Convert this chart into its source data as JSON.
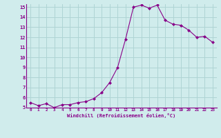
{
  "x": [
    0,
    1,
    2,
    3,
    4,
    5,
    6,
    7,
    8,
    9,
    10,
    11,
    12,
    13,
    14,
    15,
    16,
    17,
    18,
    19,
    20,
    21,
    22,
    23
  ],
  "y": [
    5.5,
    5.2,
    5.4,
    5.0,
    5.3,
    5.3,
    5.5,
    5.6,
    5.9,
    6.5,
    7.5,
    9.0,
    11.8,
    15.0,
    15.2,
    14.9,
    15.2,
    13.7,
    13.3,
    13.2,
    12.7,
    12.0,
    12.1,
    11.5
  ],
  "xlabel": "Windchill (Refroidissement éolien,°C)",
  "xlim": [
    -0.5,
    23.5
  ],
  "ylim": [
    5,
    15.3
  ],
  "yticks": [
    5,
    6,
    7,
    8,
    9,
    10,
    11,
    12,
    13,
    14,
    15
  ],
  "xticks": [
    0,
    1,
    2,
    3,
    4,
    5,
    6,
    7,
    8,
    9,
    10,
    11,
    12,
    13,
    14,
    15,
    16,
    17,
    18,
    19,
    20,
    21,
    22,
    23
  ],
  "line_color": "#880088",
  "marker": "D",
  "bg_color": "#d0ecec",
  "grid_color": "#aed4d4",
  "xlabel_color": "#880088",
  "tick_color": "#880088"
}
